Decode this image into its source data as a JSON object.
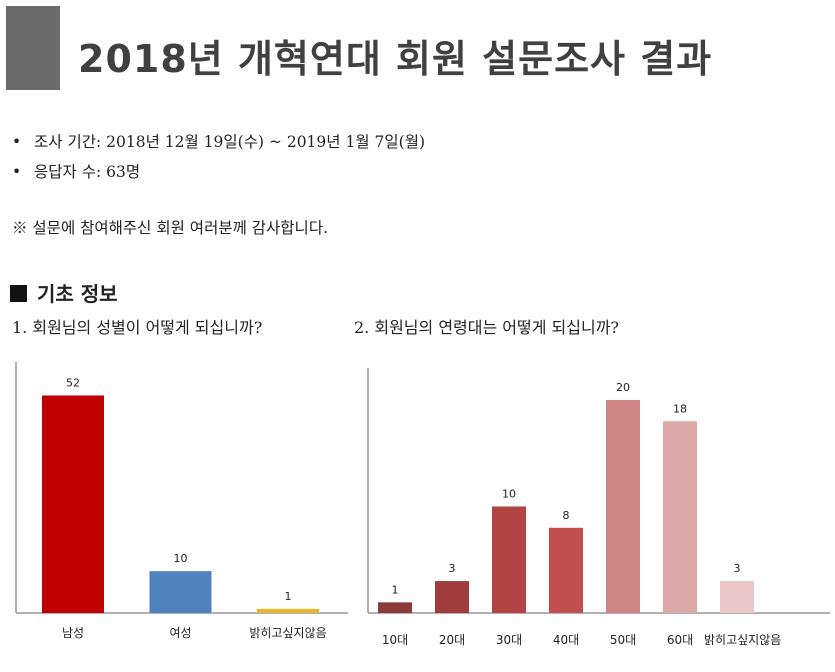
{
  "title": "2018년 개혁연대 회원 설문조사 결과",
  "info": {
    "period": "조사 기간: 2018년 12월 19일(수) ~ 2019년 1월 7일(월)",
    "respondents": "응답자 수: 63명",
    "bullet": "•"
  },
  "note": "※ 설문에 참여해주신 회원 여러분께 감사합니다.",
  "section": {
    "title": "기초 정보"
  },
  "questions": {
    "q1": "1. 회원님의 성별이 어떻게 되십니까?",
    "q2": "2. 회원님의 연령대는 어떻게 되십니까?"
  },
  "chart_data": [
    {
      "type": "bar",
      "categories": [
        "남성",
        "여성",
        "밝히고싶지않음"
      ],
      "values": [
        52,
        10,
        1
      ],
      "colors": [
        "#c00000",
        "#4f81bd",
        "#e5b82d"
      ],
      "ylim": [
        0,
        60
      ],
      "grid": false
    },
    {
      "type": "bar",
      "categories": [
        "10대",
        "20대",
        "30대",
        "40대",
        "50대",
        "60대",
        "밝히고싶지않음"
      ],
      "values": [
        1,
        3,
        10,
        8,
        20,
        18,
        3
      ],
      "colors": [
        "#8b3a3a",
        "#a03c3c",
        "#b44444",
        "#c24e4e",
        "#cf8585",
        "#dba7a7",
        "#ecc7c7"
      ],
      "ylim": [
        0,
        23
      ],
      "grid": false
    }
  ]
}
